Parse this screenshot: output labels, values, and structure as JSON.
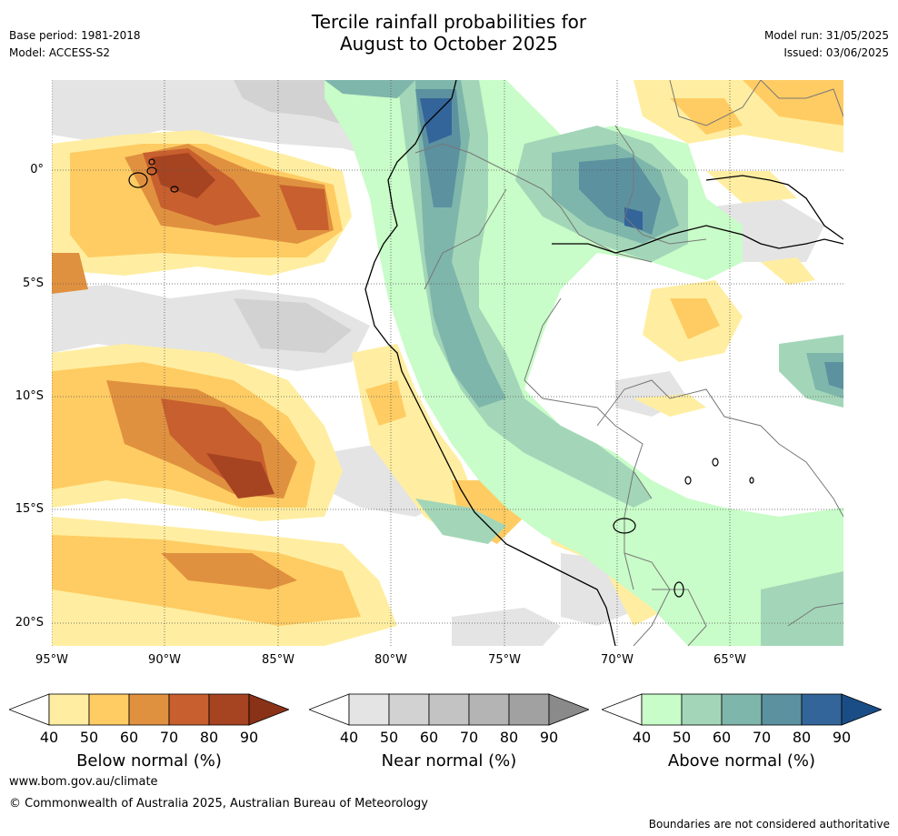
{
  "header": {
    "title_line1": "Tercile rainfall probabilities for",
    "title_line2": "August to October 2025",
    "base_period": "Base period: 1981-2018",
    "model": "Model: ACCESS-S2",
    "model_run": "Model run: 31/05/2025",
    "issued": "Issued: 03/06/2025"
  },
  "map": {
    "lat_labels": [
      "0°",
      "5°S",
      "10°S",
      "15°S",
      "20°S"
    ],
    "lon_labels": [
      "95°W",
      "90°W",
      "85°W",
      "80°W",
      "75°W",
      "70°W",
      "65°W"
    ]
  },
  "legend": {
    "below": {
      "title": "Below normal (%)",
      "ticks": [
        "40",
        "50",
        "60",
        "70",
        "80",
        "90"
      ],
      "colors": [
        "#ffeea1",
        "#fecc63",
        "#e0913f",
        "#c85f2e",
        "#a64321",
        "#8a3218"
      ]
    },
    "near": {
      "title": "Near normal (%)",
      "ticks": [
        "40",
        "50",
        "60",
        "70",
        "80",
        "90"
      ],
      "colors": [
        "#e4e4e4",
        "#d2d2d2",
        "#c3c3c3",
        "#b4b4b4",
        "#a1a1a1",
        "#8a8a8a"
      ]
    },
    "above": {
      "title": "Above normal (%)",
      "ticks": [
        "40",
        "50",
        "60",
        "70",
        "80",
        "90"
      ],
      "colors": [
        "#c8fcc8",
        "#a3d6b8",
        "#7fb6ab",
        "#5c91a0",
        "#33659a",
        "#1a4d85"
      ]
    }
  },
  "footer": {
    "website": "www.bom.gov.au/climate",
    "copyright": "© Commonwealth of Australia 2025, Australian Bureau of Meteorology",
    "disclaimer": "Boundaries are not considered authoritative"
  }
}
